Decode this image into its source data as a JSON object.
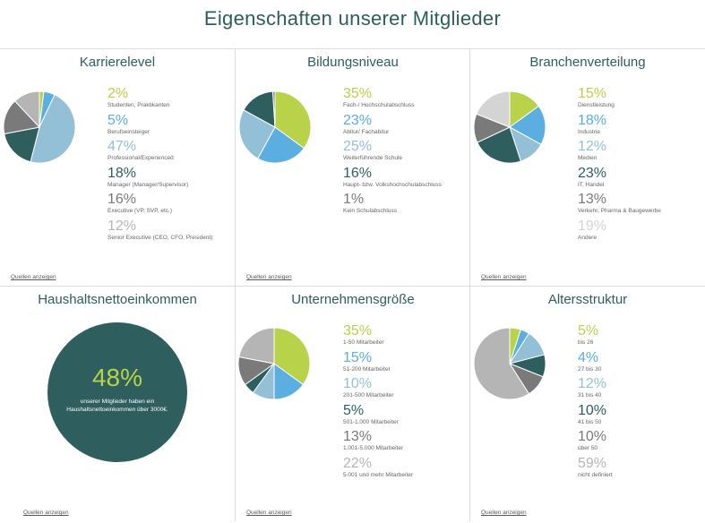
{
  "page": {
    "title": "Eigenschaften unserer Mitglieder",
    "source_label": "Quellen anzeigen"
  },
  "colors": {
    "lime": "#b8d24a",
    "blue": "#5aaee0",
    "lightblue": "#93c0d6",
    "teal": "#2e5e5e",
    "gray": "#7a7a7a",
    "lightgray": "#b5b5b5",
    "verylightgray": "#d4d4d4"
  },
  "chart_data": [
    {
      "type": "pie",
      "title": "Karrierelevel",
      "slices": [
        {
          "label": "Studenten, Praktikanten",
          "value": 2,
          "display": "2%",
          "color": "#b8d24a"
        },
        {
          "label": "Berufseinsteiger",
          "value": 5,
          "display": "5%",
          "color": "#5aaee0"
        },
        {
          "label": "Professional/Experienced",
          "value": 47,
          "display": "47%",
          "color": "#93c0d6"
        },
        {
          "label": "Manager (Manager/Supervisor)",
          "value": 18,
          "display": "18%",
          "color": "#2e5e5e"
        },
        {
          "label": "Executive (VP, SVP, etc.)",
          "value": 16,
          "display": "16%",
          "color": "#7a7a7a"
        },
        {
          "label": "Senior Executive (CEO, CFO, President)",
          "value": 12,
          "display": "12%",
          "color": "#b5b5b5"
        }
      ]
    },
    {
      "type": "pie",
      "title": "Bildungsniveau",
      "slices": [
        {
          "label": "Fach-/ Hochschulabschluss",
          "value": 35,
          "display": "35%",
          "color": "#b8d24a"
        },
        {
          "label": "Abitur/ Fachabitur",
          "value": 23,
          "display": "23%",
          "color": "#5aaee0"
        },
        {
          "label": "Weiterführende Schule",
          "value": 25,
          "display": "25%",
          "color": "#93c0d6"
        },
        {
          "label": "Haupt- bzw. Volkshochschulabschluss",
          "value": 16,
          "display": "16%",
          "color": "#2e5e5e"
        },
        {
          "label": "Kein Schulabschluss",
          "value": 1,
          "display": "1%",
          "color": "#7a7a7a"
        }
      ]
    },
    {
      "type": "pie",
      "title": "Branchenverteilung",
      "slices": [
        {
          "label": "Dienstleistung",
          "value": 15,
          "display": "15%",
          "color": "#b8d24a"
        },
        {
          "label": "Industrie",
          "value": 18,
          "display": "18%",
          "color": "#5aaee0"
        },
        {
          "label": "Medien",
          "value": 12,
          "display": "12%",
          "color": "#93c0d6"
        },
        {
          "label": "IT, Handel",
          "value": 23,
          "display": "23%",
          "color": "#2e5e5e"
        },
        {
          "label": "Verkehr, Pharma & Baugewerbe",
          "value": 13,
          "display": "13%",
          "color": "#7a7a7a"
        },
        {
          "label": "Andere",
          "value": 19,
          "display": "19%",
          "color": "#d4d4d4"
        }
      ]
    },
    {
      "type": "single-value",
      "title": "Haushaltsnettoeinkommen",
      "value": 48,
      "display": "48%",
      "caption": "unserer Mitglieder haben ein Haushaltsnettoeinkommen über 3000€."
    },
    {
      "type": "pie",
      "title": "Unternehmensgröße",
      "slices": [
        {
          "label": "1-50 Mitarbeiter",
          "value": 35,
          "display": "35%",
          "color": "#b8d24a"
        },
        {
          "label": "51-200 Mitarbeiter",
          "value": 15,
          "display": "15%",
          "color": "#5aaee0"
        },
        {
          "label": "201-500 Mitarbeiter",
          "value": 10,
          "display": "10%",
          "color": "#93c0d6"
        },
        {
          "label": "501-1.000 Mitarbeiter",
          "value": 5,
          "display": "5%",
          "color": "#2e5e5e"
        },
        {
          "label": "1.001-5.000 Mitarbeiter",
          "value": 13,
          "display": "13%",
          "color": "#7a7a7a"
        },
        {
          "label": "5.001 und mehr Mitarbeiter",
          "value": 22,
          "display": "22%",
          "color": "#b5b5b5"
        }
      ]
    },
    {
      "type": "pie",
      "title": "Altersstruktur",
      "slices": [
        {
          "label": "bis 26",
          "value": 5,
          "display": "5%",
          "color": "#b8d24a"
        },
        {
          "label": "27 bis 30",
          "value": 4,
          "display": "4%",
          "color": "#5aaee0"
        },
        {
          "label": "31 bis 40",
          "value": 12,
          "display": "12%",
          "color": "#93c0d6"
        },
        {
          "label": "41 bis 50",
          "value": 10,
          "display": "10%",
          "color": "#2e5e5e"
        },
        {
          "label": "über 50",
          "value": 10,
          "display": "10%",
          "color": "#7a7a7a"
        },
        {
          "label": "nicht definiert",
          "value": 59,
          "display": "59%",
          "color": "#b5b5b5"
        }
      ]
    }
  ]
}
